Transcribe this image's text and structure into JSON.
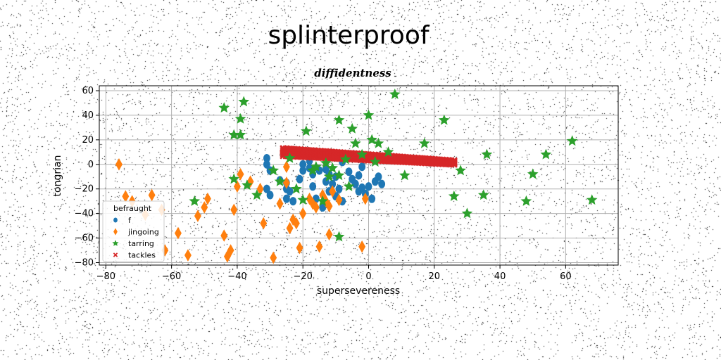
{
  "chart_data": {
    "type": "scatter",
    "title": "splinterproof",
    "subtitle": "diffidentness",
    "xlabel": "supersevereness",
    "ylabel": "tongrian",
    "xlim": [
      -82,
      76
    ],
    "ylim": [
      -82,
      64
    ],
    "xticks": [
      -80,
      -60,
      -40,
      -20,
      0,
      20,
      40,
      60
    ],
    "yticks": [
      -80,
      -60,
      -40,
      -20,
      0,
      20,
      40,
      60
    ],
    "grid": true,
    "legend": {
      "title": "befraught",
      "position": "lower-left"
    },
    "series": [
      {
        "name": "f",
        "marker": "circle",
        "color": "#1f77b4",
        "points": [
          [
            -31,
            5
          ],
          [
            -31,
            0
          ],
          [
            -30,
            -5
          ],
          [
            -31,
            -20
          ],
          [
            -30,
            -25
          ],
          [
            -27,
            -13
          ],
          [
            -25,
            -15
          ],
          [
            -25,
            -20
          ],
          [
            -24,
            -22
          ],
          [
            -25,
            -28
          ],
          [
            -23,
            -30
          ],
          [
            -18,
            3
          ],
          [
            -20,
            0
          ],
          [
            -18,
            -3
          ],
          [
            -15,
            -5
          ],
          [
            -17,
            -8
          ],
          [
            -13,
            -4
          ],
          [
            -12,
            -8
          ],
          [
            -13,
            -14
          ],
          [
            -11,
            -16
          ],
          [
            -12,
            -22
          ],
          [
            -10,
            -26
          ],
          [
            -17,
            -18
          ],
          [
            -8,
            -30
          ],
          [
            -14,
            -35
          ],
          [
            -6,
            -6
          ],
          [
            -3,
            -9
          ],
          [
            -5,
            -12
          ],
          [
            -4,
            -16
          ],
          [
            -2,
            -19
          ],
          [
            -3,
            -22
          ],
          [
            -1,
            -24
          ],
          [
            1,
            -28
          ],
          [
            3,
            -10
          ],
          [
            2,
            -14
          ],
          [
            4,
            -16
          ],
          [
            -8,
            2
          ],
          [
            -10,
            -10
          ],
          [
            -20,
            -5
          ],
          [
            -2,
            -2
          ],
          [
            0,
            -18
          ],
          [
            -16,
            -28
          ],
          [
            -21,
            -12
          ],
          [
            -9,
            -20
          ],
          [
            1,
            5
          ]
        ]
      },
      {
        "name": "jingoing",
        "marker": "diamond",
        "color": "#ff7f0e",
        "points": [
          [
            -76,
            0
          ],
          [
            -74,
            -26
          ],
          [
            -72,
            -30
          ],
          [
            -68,
            -41
          ],
          [
            -66,
            -25
          ],
          [
            -63,
            -37
          ],
          [
            -62,
            -70
          ],
          [
            -58,
            -56
          ],
          [
            -55,
            -74
          ],
          [
            -52,
            -42
          ],
          [
            -50,
            -35
          ],
          [
            -49,
            -28
          ],
          [
            -44,
            -58
          ],
          [
            -43,
            -75
          ],
          [
            -42,
            -70
          ],
          [
            -41,
            -37
          ],
          [
            -39,
            -8
          ],
          [
            -40,
            -18
          ],
          [
            -36,
            -14
          ],
          [
            -33,
            -20
          ],
          [
            -32,
            -48
          ],
          [
            -29,
            -76
          ],
          [
            -27,
            -32
          ],
          [
            -25,
            -15
          ],
          [
            -24,
            -52
          ],
          [
            -23,
            -45
          ],
          [
            -22,
            -48
          ],
          [
            -21,
            -68
          ],
          [
            -18,
            -28
          ],
          [
            -17,
            -32
          ],
          [
            -16,
            -35
          ],
          [
            -15,
            -67
          ],
          [
            -14,
            -25
          ],
          [
            -13,
            -30
          ],
          [
            -12,
            -57
          ],
          [
            -11,
            -22
          ],
          [
            -9,
            -29
          ],
          [
            -2,
            -67
          ],
          [
            -1,
            -28
          ],
          [
            -25,
            -2
          ],
          [
            -20,
            -40
          ],
          [
            -12,
            -34
          ]
        ]
      },
      {
        "name": "tarring",
        "marker": "star",
        "color": "#2ca02c",
        "points": [
          [
            -44,
            46
          ],
          [
            -38,
            51
          ],
          [
            -41,
            24
          ],
          [
            -39,
            37
          ],
          [
            -39,
            24
          ],
          [
            -37,
            -17
          ],
          [
            -41,
            -12
          ],
          [
            -34,
            -25
          ],
          [
            -29,
            -5
          ],
          [
            -27,
            -14
          ],
          [
            -24,
            5
          ],
          [
            -22,
            -20
          ],
          [
            -19,
            27
          ],
          [
            -17,
            -5
          ],
          [
            -14,
            -30
          ],
          [
            -13,
            1
          ],
          [
            -11,
            -3
          ],
          [
            -9,
            -9
          ],
          [
            -9,
            36
          ],
          [
            -5,
            29
          ],
          [
            -4,
            17
          ],
          [
            -2,
            8
          ],
          [
            0,
            40
          ],
          [
            1,
            20
          ],
          [
            3,
            17
          ],
          [
            6,
            10
          ],
          [
            8,
            57
          ],
          [
            11,
            -9
          ],
          [
            17,
            17
          ],
          [
            23,
            36
          ],
          [
            26,
            -26
          ],
          [
            28,
            -5
          ],
          [
            30,
            -40
          ],
          [
            35,
            -25
          ],
          [
            36,
            8
          ],
          [
            48,
            -30
          ],
          [
            50,
            -8
          ],
          [
            54,
            8
          ],
          [
            62,
            19
          ],
          [
            68,
            -29
          ],
          [
            -53,
            -30
          ],
          [
            -9,
            -59
          ],
          [
            -20,
            -29
          ],
          [
            -16,
            -2
          ],
          [
            -6,
            -18
          ],
          [
            2,
            2
          ],
          [
            -12,
            -10
          ],
          [
            -7,
            4
          ]
        ]
      },
      {
        "name": "tackles",
        "marker": "x",
        "color": "#d62728",
        "band": {
          "x_start": -26,
          "x_end": 26,
          "y_start_top": 13,
          "y_start_bottom": 7,
          "y_end_top": 3,
          "y_end_bottom": 0
        }
      }
    ]
  },
  "colors": {
    "background": "#ffffff",
    "grid": "#b0b0b0",
    "noise": "#000000"
  }
}
